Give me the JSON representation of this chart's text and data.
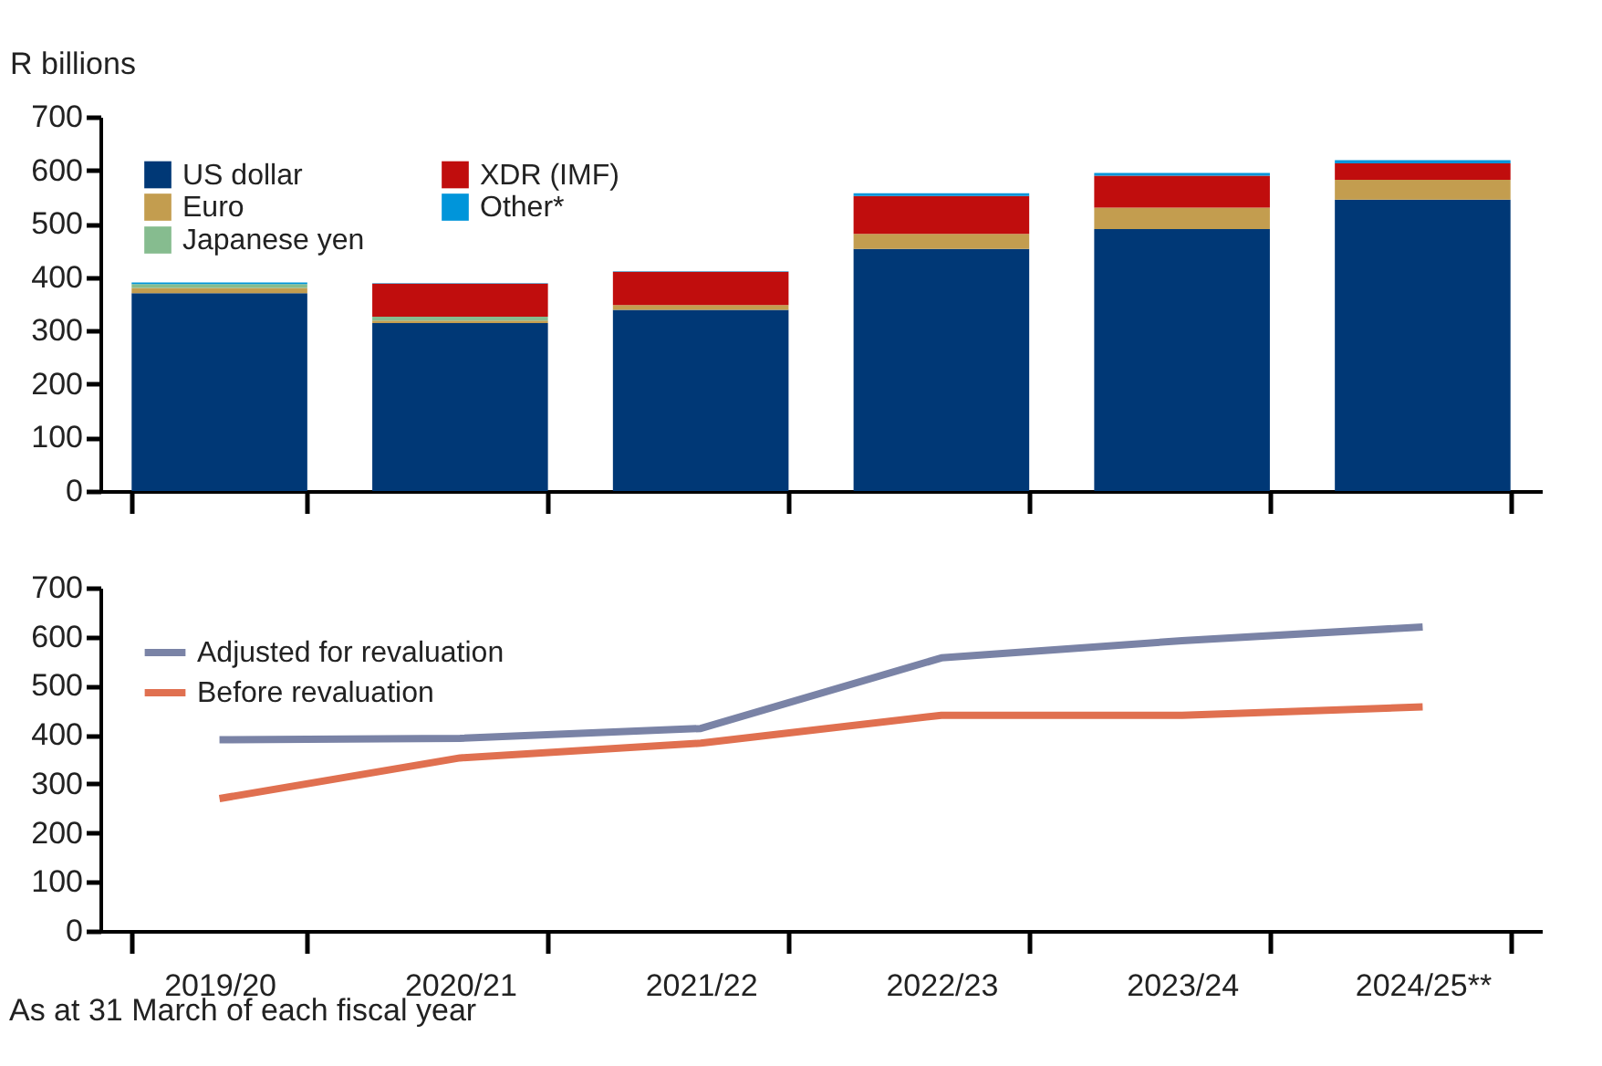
{
  "chart_data": [
    {
      "type": "bar",
      "stacked": true,
      "ylabel": "R billions",
      "categories": [
        "2019/20",
        "2020/21",
        "2021/22",
        "2022/23",
        "2023/24",
        "2024/25**"
      ],
      "series": [
        {
          "name": "US dollar",
          "color": "#003876",
          "values": [
            370,
            314,
            339,
            453,
            490,
            545
          ]
        },
        {
          "name": "Euro",
          "color": "#c39d4f",
          "values": [
            10,
            5,
            9,
            28,
            40,
            37
          ]
        },
        {
          "name": "Japanese yen",
          "color": "#86bc8f",
          "values": [
            7,
            7,
            0,
            0,
            0,
            0
          ]
        },
        {
          "name": "XDR (IMF)",
          "color": "#c00d0d",
          "values": [
            0,
            62,
            62,
            71,
            60,
            31
          ]
        },
        {
          "name": "Other*",
          "color": "#0095da",
          "values": [
            3,
            1,
            1,
            5,
            5,
            6
          ]
        }
      ],
      "ylim": [
        0,
        700
      ],
      "yticks": [
        0,
        100,
        200,
        300,
        400,
        500,
        600,
        700
      ],
      "grid": false,
      "legend": "top left",
      "tick_labels": "y"
    },
    {
      "type": "line",
      "categories": [
        "2019/20",
        "2020/21",
        "2021/22",
        "2022/23",
        "2023/24",
        "2024/25**"
      ],
      "series": [
        {
          "name": "Adjusted for revaluation",
          "color": "#7a83a6",
          "values": [
            390,
            393,
            413,
            557,
            592,
            620
          ]
        },
        {
          "name": "Before revaluation",
          "color": "#e07050",
          "values": [
            270,
            353,
            383,
            440,
            440,
            457
          ]
        }
      ],
      "ylim": [
        0,
        700
      ],
      "yticks": [
        0,
        100,
        200,
        300,
        400,
        500,
        600,
        700
      ],
      "grid": false,
      "legend": "top left",
      "annotations": [
        "As at 31 March of each fiscal year"
      ]
    }
  ]
}
